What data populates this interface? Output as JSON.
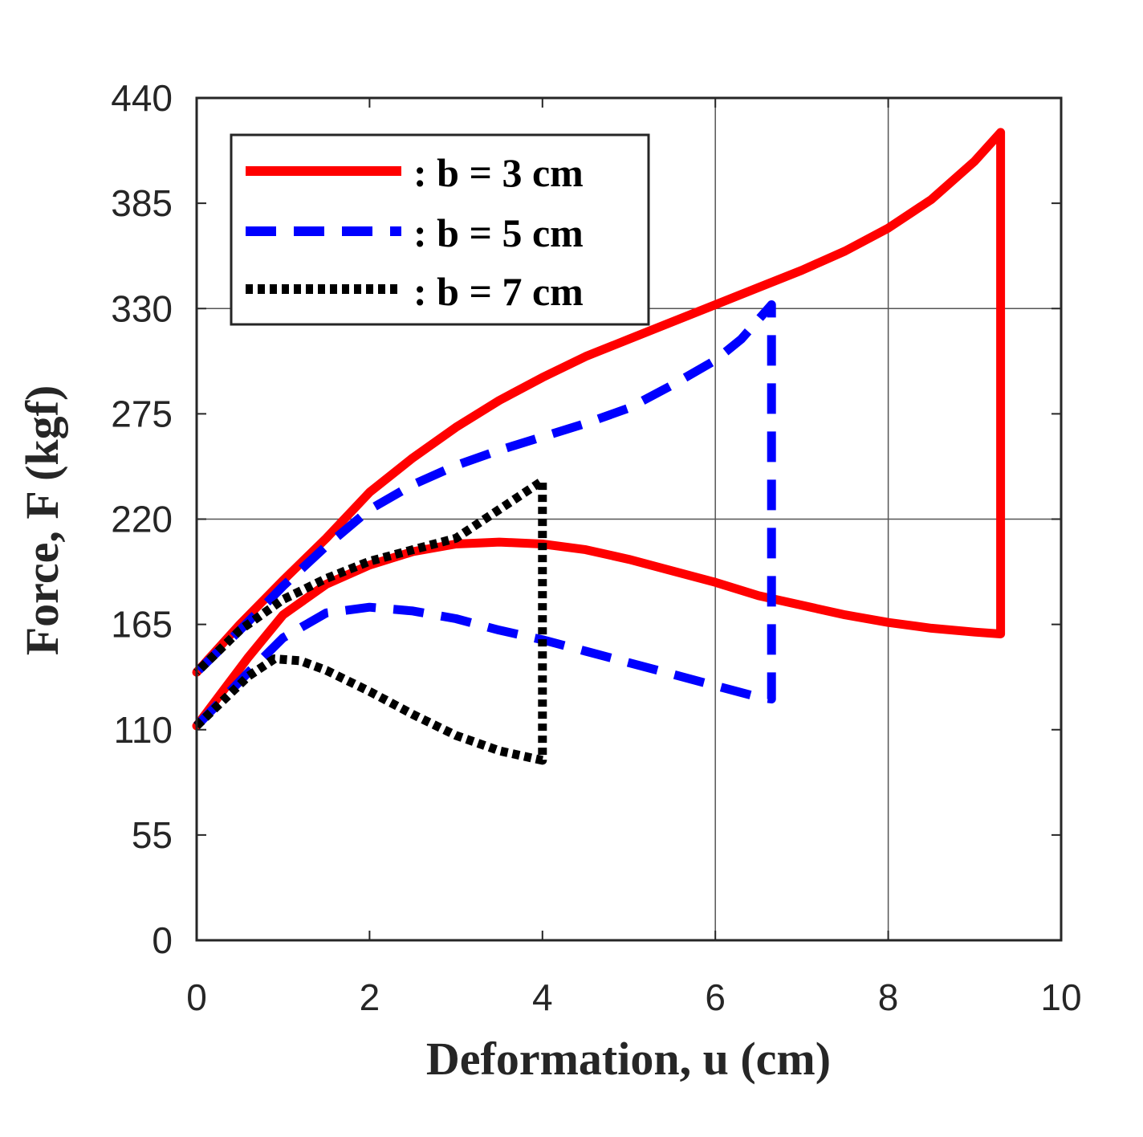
{
  "chart_data": {
    "type": "line",
    "title": "",
    "xlabel": "Deformation, u (cm)",
    "ylabel": "Force, F (kgf)",
    "xlim": [
      0,
      10
    ],
    "ylim": [
      0,
      440
    ],
    "xticks": [
      "0",
      "2",
      "4",
      "6",
      "8",
      "10"
    ],
    "yticks": [
      "0",
      "55",
      "110",
      "165",
      "220",
      "275",
      "330",
      "385",
      "440"
    ],
    "grid": "partial",
    "legend_position": "top-left",
    "series": [
      {
        "name": ": b = 3 cm",
        "color": "#ff0000",
        "style": "solid",
        "points": [
          [
            0,
            112
          ],
          [
            0.3,
            130
          ],
          [
            0.6,
            148
          ],
          [
            1.0,
            170
          ],
          [
            1.5,
            186
          ],
          [
            2.0,
            196
          ],
          [
            2.5,
            203
          ],
          [
            3.0,
            207
          ],
          [
            3.5,
            208
          ],
          [
            4.0,
            207
          ],
          [
            4.5,
            204
          ],
          [
            5.0,
            199
          ],
          [
            5.5,
            193
          ],
          [
            6.0,
            187
          ],
          [
            6.5,
            180
          ],
          [
            7.0,
            175
          ],
          [
            7.5,
            170
          ],
          [
            8.0,
            166
          ],
          [
            8.5,
            163
          ],
          [
            9.0,
            161
          ],
          [
            9.3,
            160
          ],
          [
            9.3,
            422
          ],
          [
            9.0,
            407
          ],
          [
            8.5,
            387
          ],
          [
            8.0,
            372
          ],
          [
            7.5,
            360
          ],
          [
            7.0,
            350
          ],
          [
            6.5,
            341
          ],
          [
            6.0,
            332
          ],
          [
            5.5,
            323
          ],
          [
            5.0,
            314
          ],
          [
            4.5,
            305
          ],
          [
            4.0,
            294
          ],
          [
            3.5,
            282
          ],
          [
            3.0,
            268
          ],
          [
            2.5,
            252
          ],
          [
            2.0,
            234
          ],
          [
            1.5,
            210
          ],
          [
            1.0,
            188
          ],
          [
            0.5,
            165
          ],
          [
            0,
            140
          ]
        ]
      },
      {
        "name": ": b = 5 cm",
        "color": "#0000ff",
        "style": "dashed",
        "points": [
          [
            0,
            112
          ],
          [
            0.3,
            126
          ],
          [
            0.6,
            140
          ],
          [
            1.0,
            158
          ],
          [
            1.5,
            171
          ],
          [
            2.0,
            174
          ],
          [
            2.5,
            172
          ],
          [
            3.0,
            168
          ],
          [
            3.5,
            162
          ],
          [
            4.0,
            157
          ],
          [
            4.5,
            151
          ],
          [
            5.0,
            145
          ],
          [
            5.5,
            139
          ],
          [
            6.0,
            133
          ],
          [
            6.5,
            127
          ],
          [
            6.65,
            126
          ],
          [
            6.65,
            332
          ],
          [
            6.3,
            314
          ],
          [
            6.0,
            303
          ],
          [
            5.5,
            290
          ],
          [
            5.0,
            278
          ],
          [
            4.5,
            270
          ],
          [
            4.0,
            263
          ],
          [
            3.5,
            256
          ],
          [
            3.0,
            248
          ],
          [
            2.5,
            238
          ],
          [
            2.0,
            225
          ],
          [
            1.5,
            206
          ],
          [
            1.0,
            185
          ],
          [
            0.5,
            162
          ],
          [
            0,
            140
          ]
        ]
      },
      {
        "name": ": b = 7 cm",
        "color": "#000000",
        "style": "dotted",
        "points": [
          [
            0,
            112
          ],
          [
            0.3,
            125
          ],
          [
            0.6,
            138
          ],
          [
            0.9,
            147
          ],
          [
            1.2,
            146
          ],
          [
            1.5,
            141
          ],
          [
            2.0,
            130
          ],
          [
            2.5,
            118
          ],
          [
            3.0,
            107
          ],
          [
            3.5,
            99
          ],
          [
            4.0,
            94
          ],
          [
            4.0,
            240
          ],
          [
            3.6,
            228
          ],
          [
            3.0,
            210
          ],
          [
            2.5,
            204
          ],
          [
            2.0,
            198
          ],
          [
            1.5,
            189
          ],
          [
            1.0,
            178
          ],
          [
            0.5,
            162
          ],
          [
            0,
            140
          ]
        ]
      }
    ]
  }
}
